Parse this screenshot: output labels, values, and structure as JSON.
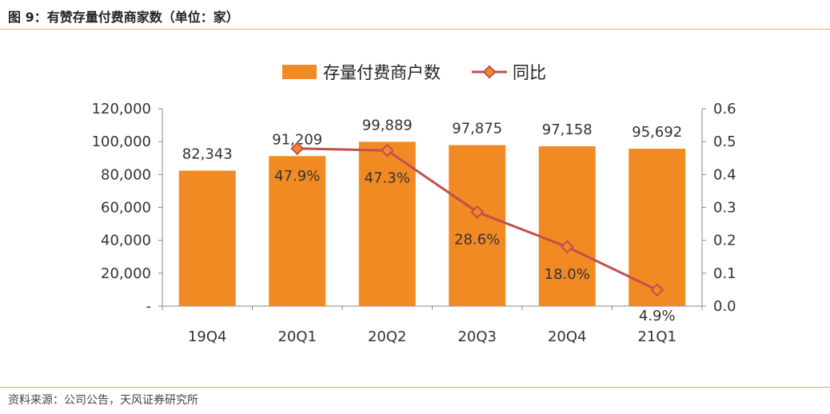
{
  "figure": {
    "title": "图 9：有赞存量付费商家数（单位：家）",
    "source": "资料来源：公司公告，天风证券研究所"
  },
  "chart_data": {
    "type": "bar",
    "categories": [
      "19Q4",
      "20Q1",
      "20Q2",
      "20Q3",
      "20Q4",
      "21Q1"
    ],
    "series": [
      {
        "name": "存量付费商户数",
        "kind": "bar",
        "axis": "left",
        "color": "#f28a24",
        "values": [
          82343,
          91209,
          99889,
          97875,
          97158,
          95692
        ],
        "labels": [
          "82,343",
          "91,209",
          "99,889",
          "97,875",
          "97,158",
          "95,692"
        ]
      },
      {
        "name": "同比",
        "kind": "line",
        "axis": "right",
        "color": "#c0504d",
        "marker_fill": "#f28a24",
        "x": [
          "20Q1",
          "20Q2",
          "20Q3",
          "20Q4",
          "21Q1"
        ],
        "values": [
          0.479,
          0.473,
          0.286,
          0.18,
          0.049
        ],
        "labels": [
          "47.9%",
          "47.3%",
          "28.6%",
          "18.0%",
          "4.9%"
        ]
      }
    ],
    "y_left": {
      "ylim": [
        0,
        120000
      ],
      "ticks": [
        0,
        20000,
        40000,
        60000,
        80000,
        100000,
        120000
      ],
      "tick_labels": [
        "-",
        "20,000",
        "40,000",
        "60,000",
        "80,000",
        "100,000",
        "120,000"
      ]
    },
    "y_right": {
      "ylim": [
        0,
        0.6
      ],
      "ticks": [
        0,
        0.1,
        0.2,
        0.3,
        0.4,
        0.5,
        0.6
      ],
      "tick_labels": [
        "0.0",
        "0.1",
        "0.2",
        "0.3",
        "0.4",
        "0.5",
        "0.6"
      ]
    },
    "legend": {
      "placement": "top-center"
    },
    "grid": false
  }
}
